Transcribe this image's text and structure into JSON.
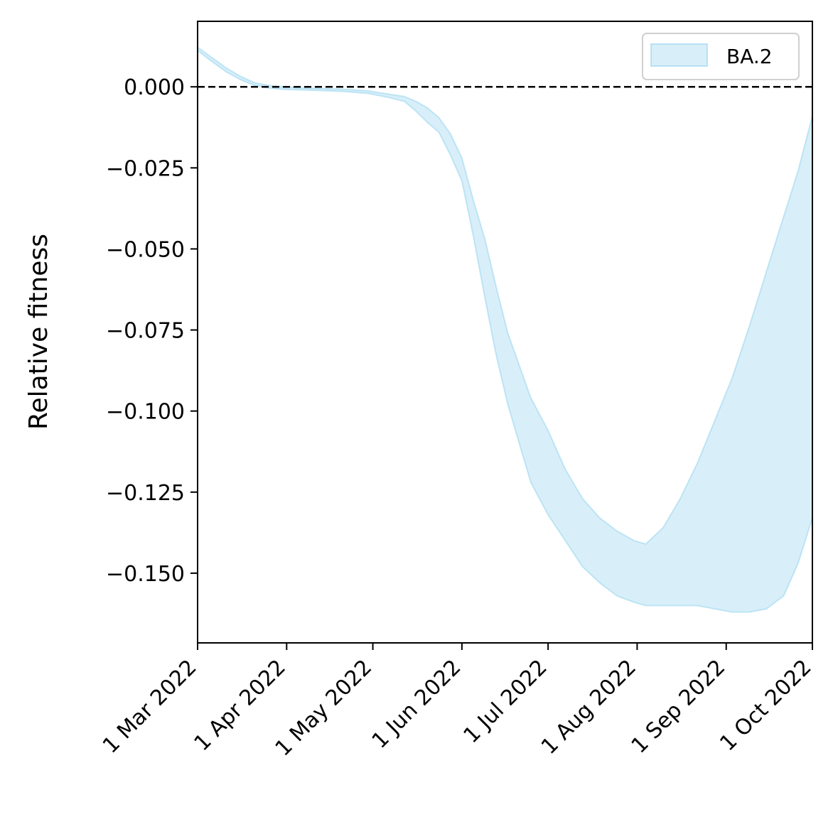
{
  "chart_data": {
    "type": "area",
    "title": "",
    "xlabel": "",
    "ylabel": "Relative fitness",
    "x_ticks": [
      {
        "date": "2022-03-01",
        "label": "1 Mar 2022"
      },
      {
        "date": "2022-04-01",
        "label": "1 Apr 2022"
      },
      {
        "date": "2022-05-01",
        "label": "1 May 2022"
      },
      {
        "date": "2022-06-01",
        "label": "1 Jun 2022"
      },
      {
        "date": "2022-07-01",
        "label": "1 Jul 2022"
      },
      {
        "date": "2022-08-01",
        "label": "1 Aug 2022"
      },
      {
        "date": "2022-09-01",
        "label": "1 Sep 2022"
      },
      {
        "date": "2022-10-01",
        "label": "1 Oct 2022"
      }
    ],
    "y_ticks": [
      {
        "value": 0.0,
        "label": "0.000"
      },
      {
        "value": -0.025,
        "label": "−0.025"
      },
      {
        "value": -0.05,
        "label": "−0.050"
      },
      {
        "value": -0.075,
        "label": "−0.075"
      },
      {
        "value": -0.1,
        "label": "−0.100"
      },
      {
        "value": -0.125,
        "label": "−0.125"
      },
      {
        "value": -0.15,
        "label": "−0.150"
      }
    ],
    "xlim": [
      "2022-03-01",
      "2022-10-01"
    ],
    "ylim": [
      -0.1715,
      0.0202
    ],
    "grid": false,
    "reference_line": {
      "y": 0,
      "style": "dashed",
      "color": "#000000"
    },
    "legend": {
      "position": "top-right"
    },
    "series": [
      {
        "name": "BA.2",
        "color": "#87ceeb",
        "fill_opacity": 0.32,
        "band": [
          {
            "date": "2022-03-01",
            "upper": 0.0122,
            "lower": 0.0112
          },
          {
            "date": "2022-03-06",
            "upper": 0.009,
            "lower": 0.0078
          },
          {
            "date": "2022-03-11",
            "upper": 0.0058,
            "lower": 0.0046
          },
          {
            "date": "2022-03-16",
            "upper": 0.0032,
            "lower": 0.0022
          },
          {
            "date": "2022-03-21",
            "upper": 0.0012,
            "lower": 0.0004
          },
          {
            "date": "2022-03-26",
            "upper": 0.0004,
            "lower": -0.0004
          },
          {
            "date": "2022-03-31",
            "upper": 0.0,
            "lower": -0.0008
          },
          {
            "date": "2022-04-08",
            "upper": -0.0004,
            "lower": -0.001
          },
          {
            "date": "2022-04-15",
            "upper": -0.0006,
            "lower": -0.0012
          },
          {
            "date": "2022-04-22",
            "upper": -0.0008,
            "lower": -0.0015
          },
          {
            "date": "2022-04-29",
            "upper": -0.0012,
            "lower": -0.002
          },
          {
            "date": "2022-05-06",
            "upper": -0.0022,
            "lower": -0.0032
          },
          {
            "date": "2022-05-12",
            "upper": -0.003,
            "lower": -0.0045
          },
          {
            "date": "2022-05-16",
            "upper": -0.0045,
            "lower": -0.0075
          },
          {
            "date": "2022-05-20",
            "upper": -0.0065,
            "lower": -0.011
          },
          {
            "date": "2022-05-24",
            "upper": -0.0095,
            "lower": -0.014
          },
          {
            "date": "2022-05-28",
            "upper": -0.0145,
            "lower": -0.021
          },
          {
            "date": "2022-06-01",
            "upper": -0.022,
            "lower": -0.029
          },
          {
            "date": "2022-06-05",
            "upper": -0.035,
            "lower": -0.046
          },
          {
            "date": "2022-06-09",
            "upper": -0.047,
            "lower": -0.065
          },
          {
            "date": "2022-06-13",
            "upper": -0.062,
            "lower": -0.083
          },
          {
            "date": "2022-06-17",
            "upper": -0.076,
            "lower": -0.098
          },
          {
            "date": "2022-06-21",
            "upper": -0.086,
            "lower": -0.11
          },
          {
            "date": "2022-06-25",
            "upper": -0.096,
            "lower": -0.122
          },
          {
            "date": "2022-07-01",
            "upper": -0.106,
            "lower": -0.132
          },
          {
            "date": "2022-07-07",
            "upper": -0.118,
            "lower": -0.14
          },
          {
            "date": "2022-07-13",
            "upper": -0.127,
            "lower": -0.148
          },
          {
            "date": "2022-07-19",
            "upper": -0.133,
            "lower": -0.153
          },
          {
            "date": "2022-07-25",
            "upper": -0.137,
            "lower": -0.157
          },
          {
            "date": "2022-07-31",
            "upper": -0.14,
            "lower": -0.159
          },
          {
            "date": "2022-08-04",
            "upper": -0.141,
            "lower": -0.16
          },
          {
            "date": "2022-08-10",
            "upper": -0.136,
            "lower": -0.16
          },
          {
            "date": "2022-08-16",
            "upper": -0.127,
            "lower": -0.16
          },
          {
            "date": "2022-08-22",
            "upper": -0.116,
            "lower": -0.16
          },
          {
            "date": "2022-08-28",
            "upper": -0.103,
            "lower": -0.161
          },
          {
            "date": "2022-09-03",
            "upper": -0.09,
            "lower": -0.162
          },
          {
            "date": "2022-09-09",
            "upper": -0.074,
            "lower": -0.162
          },
          {
            "date": "2022-09-15",
            "upper": -0.057,
            "lower": -0.161
          },
          {
            "date": "2022-09-21",
            "upper": -0.04,
            "lower": -0.157
          },
          {
            "date": "2022-09-26",
            "upper": -0.026,
            "lower": -0.147
          },
          {
            "date": "2022-10-01",
            "upper": -0.009,
            "lower": -0.133
          }
        ]
      }
    ]
  }
}
